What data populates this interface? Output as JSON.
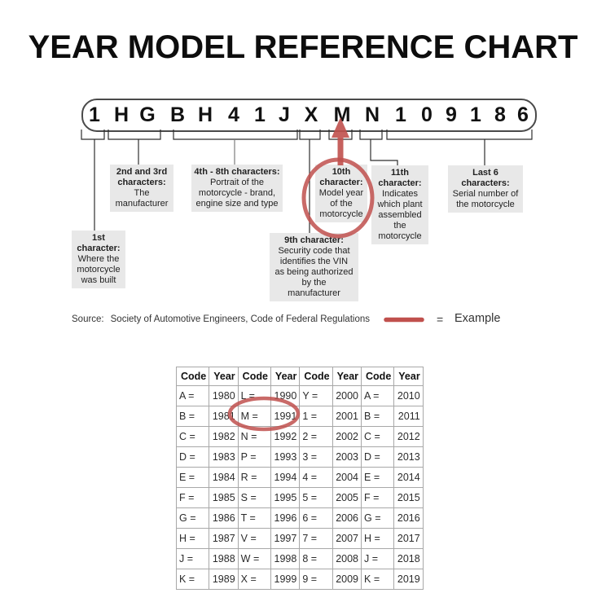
{
  "title": "YEAR MODEL REFERENCE CHART",
  "colors": {
    "accent_red": "#c0504d",
    "box_bg": "#e8e8e8",
    "border_gray": "#a8a8a8"
  },
  "vin": {
    "code": "1HGBH41JXMN109186"
  },
  "diagram": {
    "callouts": [
      {
        "id": "1st",
        "title": "1st character:",
        "body": "Where the motorcycle was built"
      },
      {
        "id": "2nd-3rd",
        "title": "2nd and 3rd characters:",
        "body": "The manufacturer"
      },
      {
        "id": "4th-8th",
        "title": "4th - 8th characters:",
        "body": "Portrait of the motorcycle - brand, engine size and type"
      },
      {
        "id": "9th",
        "title": "9th character:",
        "body": "Security code that identifies the VIN as being authorized by the manufacturer"
      },
      {
        "id": "10th",
        "title": "10th character:",
        "body": "Model year of the motorcycle"
      },
      {
        "id": "11th",
        "title": "11th character:",
        "body": "Indicates which plant assembled the motorcycle"
      },
      {
        "id": "last-6",
        "title": "Last 6 characters:",
        "body": "Serial number of the motorcycle"
      }
    ],
    "highlighted_character": "M"
  },
  "legend": {
    "source_label": "Source:",
    "source_text": "Society of Automotive Engineers, Code of Federal Regulations",
    "equals": "=",
    "example_label": "Example"
  },
  "table": {
    "headers": [
      "Code",
      "Year",
      "Code",
      "Year",
      "Code",
      "Year",
      "Code",
      "Year"
    ],
    "rows": [
      [
        "A =",
        "1980",
        "L =",
        "1990",
        "Y =",
        "2000",
        "A =",
        "2010"
      ],
      [
        "B =",
        "1981",
        "M =",
        "1991",
        "1 =",
        "2001",
        "B =",
        "2011"
      ],
      [
        "C =",
        "1982",
        "N =",
        "1992",
        "2 =",
        "2002",
        "C =",
        "2012"
      ],
      [
        "D =",
        "1983",
        "P =",
        "1993",
        "3 =",
        "2003",
        "D =",
        "2013"
      ],
      [
        "E =",
        "1984",
        "R =",
        "1994",
        "4 =",
        "2004",
        "E =",
        "2014"
      ],
      [
        "F =",
        "1985",
        "S =",
        "1995",
        "5 =",
        "2005",
        "F =",
        "2015"
      ],
      [
        "G =",
        "1986",
        "T =",
        "1996",
        "6 =",
        "2006",
        "G =",
        "2016"
      ],
      [
        "H =",
        "1987",
        "V =",
        "1997",
        "7 =",
        "2007",
        "H =",
        "2017"
      ],
      [
        "J =",
        "1988",
        "W =",
        "1998",
        "8 =",
        "2008",
        "J =",
        "2018"
      ],
      [
        "K =",
        "1989",
        "X =",
        "1999",
        "9 =",
        "2009",
        "K =",
        "2019"
      ]
    ],
    "circled_code": "M",
    "circled_year": "1991"
  }
}
